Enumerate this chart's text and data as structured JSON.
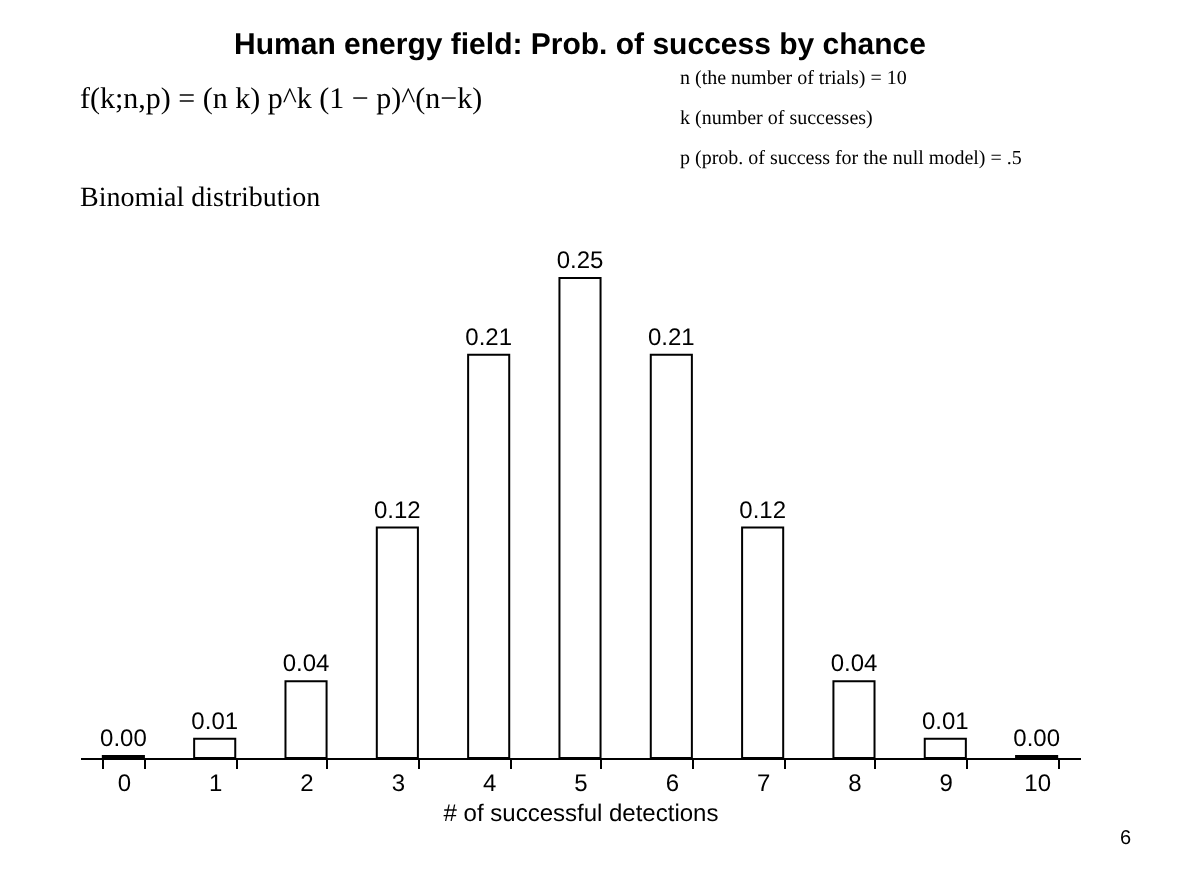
{
  "chart_data": {
    "type": "bar",
    "title": "Human energy field: Prob. of success by chance",
    "xlabel": "# of successful detections",
    "categories": [
      "0",
      "1",
      "2",
      "3",
      "4",
      "5",
      "6",
      "7",
      "8",
      "9",
      "10"
    ],
    "values": [
      0.001,
      0.01,
      0.04,
      0.12,
      0.21,
      0.25,
      0.21,
      0.12,
      0.04,
      0.01,
      0.001
    ],
    "value_labels": [
      "0.00",
      "0.01",
      "0.04",
      "0.12",
      "0.21",
      "0.25",
      "0.21",
      "0.12",
      "0.04",
      "0.01",
      "0.00"
    ],
    "color": "#ffffff",
    "tick_labels": "x",
    "grid": false,
    "annotations": [
      "f(k;n,p) = (n k) p^k (1 − p)^(n−k)",
      "n (the number of trials) = 10",
      "k (number of successes)",
      "p (prob. of success for the null model) = .5",
      "Binomial distribution",
      "6"
    ]
  }
}
